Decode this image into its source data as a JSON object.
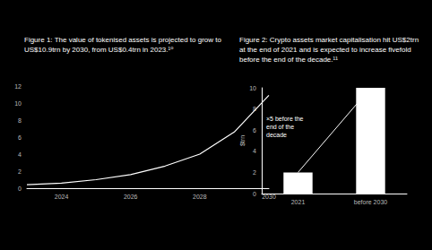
{
  "chart_data": [
    {
      "type": "line",
      "title": "Figure 1: The value of tokenised assets is projected to grow to US$10.9trn by 2030, from US$0.4trn in 2023.¹⁰",
      "x": [
        2023,
        2024,
        2025,
        2026,
        2027,
        2028,
        2029,
        2030
      ],
      "values": [
        0.4,
        0.6,
        1.0,
        1.6,
        2.6,
        4.0,
        6.6,
        10.9
      ],
      "color": "#ffffff",
      "xlim": [
        2023,
        2030
      ],
      "xticks": [
        2024,
        2026,
        2028,
        2030
      ],
      "ylim": [
        0,
        12
      ],
      "yticks": [
        0,
        2,
        4,
        6,
        8,
        10,
        12
      ],
      "grid": false
    },
    {
      "type": "bar",
      "title": "Figure 2: Crypto assets market capitalisation hit US$2trn at the end of 2021 and is expected to increase fivefold before the end of the decade.¹¹",
      "y_label": "$trn",
      "categories": [
        "2021",
        "before 2030"
      ],
      "values": [
        2,
        10
      ],
      "color": "#ffffff",
      "ylim": [
        0,
        10
      ],
      "yticks": [
        0,
        2,
        4,
        6,
        8,
        10
      ],
      "annotations": [
        "×5 before the end of the decade"
      ],
      "grid": false
    }
  ]
}
